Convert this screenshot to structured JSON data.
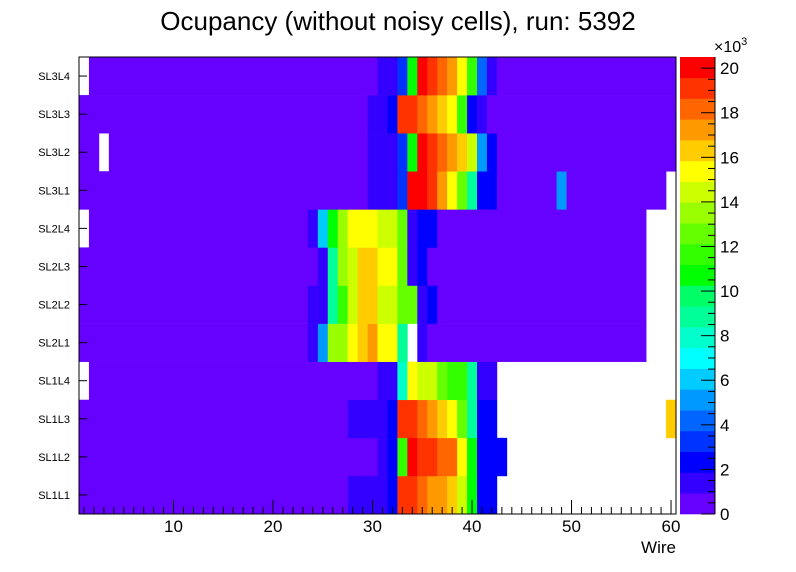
{
  "chart_data": {
    "type": "heatmap",
    "title": "Ocupancy (without noisy cells), run: 5392",
    "xlabel": "Wire",
    "ylabel": "",
    "xlim": [
      0.5,
      60.5
    ],
    "x_ticks": [
      "10",
      "20",
      "30",
      "40",
      "50",
      "60"
    ],
    "y_categories": [
      "SL1L1",
      "SL1L2",
      "SL1L3",
      "SL1L4",
      "SL2L1",
      "SL2L2",
      "SL2L3",
      "SL2L4",
      "SL3L1",
      "SL3L2",
      "SL3L3",
      "SL3L4"
    ],
    "zlim": [
      0,
      20500
    ],
    "z_multiplier": "×10",
    "z_exponent": "3",
    "z_ticks": [
      "0",
      "2",
      "4",
      "6",
      "8",
      "10",
      "12",
      "14",
      "16",
      "18",
      "20"
    ],
    "palette": [
      "#6600ff",
      "#3300ff",
      "#0000ff",
      "#0033ff",
      "#0066ff",
      "#0099ff",
      "#00ccff",
      "#00ffff",
      "#00ffcc",
      "#00ff99",
      "#00ff66",
      "#00ff00",
      "#33ff00",
      "#66ff00",
      "#99ff00",
      "#ccff00",
      "#ffff00",
      "#ffcc00",
      "#ff9900",
      "#ff6600",
      "#ff3300",
      "#ff0000"
    ],
    "rows": [
      {
        "label": "SL1L1",
        "white": [
          60
        ],
        "cells": [
          [
            1,
            27,
            500
          ],
          [
            28,
            31,
            1500
          ],
          [
            32,
            32,
            2500
          ],
          [
            33,
            34,
            19500
          ],
          [
            35,
            35,
            18500
          ],
          [
            36,
            37,
            17000
          ],
          [
            38,
            38,
            16000
          ],
          [
            39,
            39,
            14000
          ],
          [
            40,
            40,
            11000
          ],
          [
            41,
            42,
            2500
          ]
        ]
      },
      {
        "label": "SL1L2",
        "white": [
          60
        ],
        "cells": [
          [
            1,
            30,
            500
          ],
          [
            31,
            31,
            1500
          ],
          [
            32,
            32,
            2500
          ],
          [
            33,
            33,
            11500
          ],
          [
            34,
            34,
            20500
          ],
          [
            35,
            36,
            19500
          ],
          [
            37,
            38,
            18500
          ],
          [
            39,
            39,
            15500
          ],
          [
            40,
            40,
            11000
          ],
          [
            41,
            43,
            2500
          ]
        ]
      },
      {
        "label": "SL1L3",
        "white": [],
        "cells": [
          [
            1,
            27,
            500
          ],
          [
            28,
            31,
            1500
          ],
          [
            32,
            32,
            2500
          ],
          [
            33,
            34,
            19500
          ],
          [
            35,
            35,
            18500
          ],
          [
            36,
            36,
            17500
          ],
          [
            37,
            37,
            16500
          ],
          [
            38,
            38,
            15000
          ],
          [
            39,
            39,
            12500
          ],
          [
            40,
            40,
            9000
          ],
          [
            41,
            42,
            2500
          ],
          [
            60,
            60,
            16000
          ]
        ]
      },
      {
        "label": "SL1L4",
        "white": [
          1,
          55
        ],
        "cells": [
          [
            2,
            30,
            500
          ],
          [
            31,
            32,
            1500
          ],
          [
            33,
            33,
            7500
          ],
          [
            34,
            34,
            15500
          ],
          [
            35,
            36,
            14500
          ],
          [
            37,
            37,
            13000
          ],
          [
            38,
            39,
            11500
          ],
          [
            40,
            40,
            9000
          ],
          [
            41,
            42,
            1500
          ]
        ]
      },
      {
        "label": "SL2L1",
        "white": [
          34,
          58,
          59,
          60
        ],
        "cells": [
          [
            1,
            23,
            500
          ],
          [
            24,
            24,
            1500
          ],
          [
            25,
            25,
            5500
          ],
          [
            26,
            27,
            13500
          ],
          [
            28,
            28,
            15000
          ],
          [
            29,
            29,
            16000
          ],
          [
            30,
            30,
            17000
          ],
          [
            31,
            32,
            15500
          ],
          [
            33,
            33,
            8500
          ],
          [
            35,
            35,
            1500
          ],
          [
            36,
            57,
            500
          ]
        ]
      },
      {
        "label": "SL2L2",
        "white": [
          58,
          59,
          60
        ],
        "cells": [
          [
            1,
            23,
            500
          ],
          [
            24,
            25,
            1500
          ],
          [
            26,
            26,
            8500
          ],
          [
            27,
            27,
            11500
          ],
          [
            28,
            28,
            14500
          ],
          [
            29,
            30,
            16000
          ],
          [
            31,
            32,
            14500
          ],
          [
            33,
            34,
            12500
          ],
          [
            35,
            35,
            1500
          ],
          [
            36,
            36,
            2500
          ],
          [
            37,
            57,
            500
          ]
        ]
      },
      {
        "label": "SL2L3",
        "white": [
          58,
          59,
          60
        ],
        "cells": [
          [
            1,
            24,
            500
          ],
          [
            25,
            25,
            1500
          ],
          [
            26,
            26,
            8500
          ],
          [
            27,
            27,
            13500
          ],
          [
            28,
            28,
            14500
          ],
          [
            29,
            30,
            16000
          ],
          [
            31,
            32,
            15000
          ],
          [
            33,
            33,
            12500
          ],
          [
            34,
            34,
            1500
          ],
          [
            35,
            35,
            2500
          ],
          [
            36,
            57,
            500
          ]
        ]
      },
      {
        "label": "SL2L4",
        "white": [
          1,
          58,
          59,
          60
        ],
        "cells": [
          [
            2,
            23,
            500
          ],
          [
            24,
            24,
            1500
          ],
          [
            25,
            25,
            6500
          ],
          [
            26,
            26,
            10500
          ],
          [
            27,
            27,
            13500
          ],
          [
            28,
            30,
            15500
          ],
          [
            31,
            32,
            14000
          ],
          [
            33,
            33,
            12500
          ],
          [
            34,
            34,
            1500
          ],
          [
            35,
            36,
            2500
          ],
          [
            37,
            57,
            500
          ]
        ]
      },
      {
        "label": "SL3L1",
        "white": [
          60
        ],
        "cells": [
          [
            1,
            29,
            500
          ],
          [
            30,
            32,
            1500
          ],
          [
            33,
            33,
            3500
          ],
          [
            34,
            35,
            20000
          ],
          [
            36,
            36,
            19000
          ],
          [
            37,
            37,
            17500
          ],
          [
            38,
            38,
            15500
          ],
          [
            39,
            39,
            13000
          ],
          [
            40,
            40,
            8500
          ],
          [
            41,
            42,
            2000
          ],
          [
            43,
            48,
            500
          ],
          [
            49,
            49,
            5500
          ],
          [
            50,
            59,
            500
          ]
        ]
      },
      {
        "label": "SL3L2",
        "white": [
          3
        ],
        "cells": [
          [
            1,
            2,
            500
          ],
          [
            4,
            29,
            500
          ],
          [
            30,
            32,
            1500
          ],
          [
            33,
            33,
            3000
          ],
          [
            34,
            34,
            11000
          ],
          [
            35,
            35,
            20500
          ],
          [
            36,
            36,
            19500
          ],
          [
            37,
            37,
            18500
          ],
          [
            38,
            38,
            17500
          ],
          [
            39,
            39,
            16500
          ],
          [
            40,
            40,
            14500
          ],
          [
            41,
            41,
            5500
          ],
          [
            42,
            42,
            2500
          ],
          [
            43,
            60,
            500
          ]
        ]
      },
      {
        "label": "SL3L3",
        "white": [],
        "cells": [
          [
            1,
            29,
            500
          ],
          [
            30,
            31,
            1500
          ],
          [
            32,
            32,
            2500
          ],
          [
            33,
            34,
            19500
          ],
          [
            35,
            35,
            18500
          ],
          [
            36,
            36,
            17500
          ],
          [
            37,
            37,
            16500
          ],
          [
            38,
            38,
            15000
          ],
          [
            39,
            39,
            11500
          ],
          [
            40,
            40,
            2500
          ],
          [
            41,
            41,
            1500
          ],
          [
            42,
            60,
            500
          ]
        ]
      },
      {
        "label": "SL3L4",
        "white": [
          1
        ],
        "cells": [
          [
            2,
            30,
            500
          ],
          [
            31,
            32,
            1500
          ],
          [
            33,
            33,
            3000
          ],
          [
            34,
            34,
            10500
          ],
          [
            35,
            35,
            20500
          ],
          [
            36,
            36,
            19500
          ],
          [
            37,
            37,
            18500
          ],
          [
            38,
            38,
            17000
          ],
          [
            39,
            39,
            15500
          ],
          [
            40,
            40,
            11500
          ],
          [
            41,
            41,
            4000
          ],
          [
            42,
            42,
            1500
          ],
          [
            43,
            60,
            500
          ]
        ]
      }
    ]
  }
}
